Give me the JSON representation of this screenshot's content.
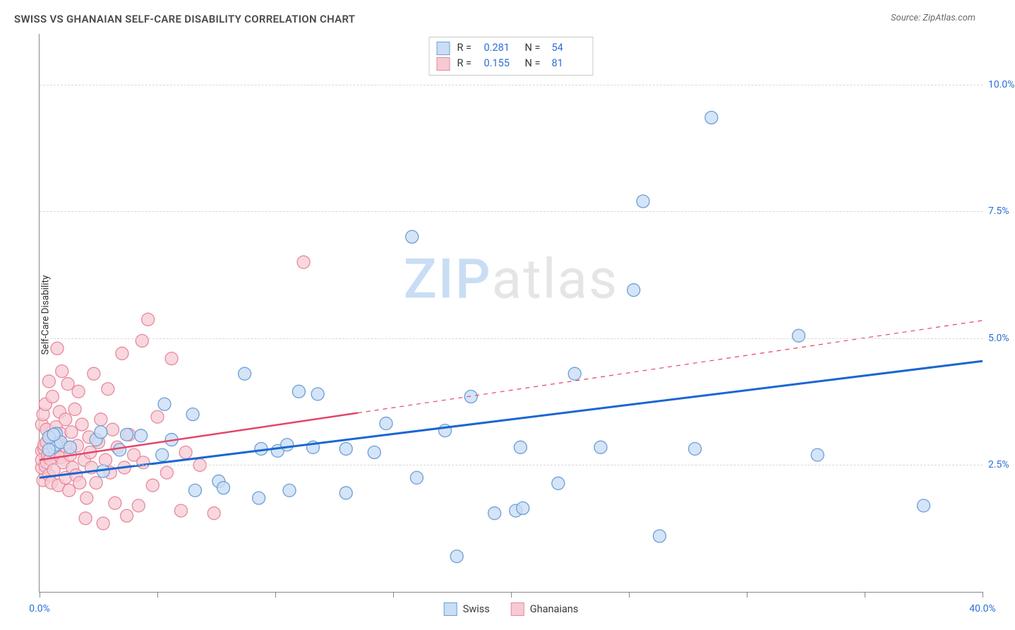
{
  "title": "SWISS VS GHANAIAN SELF-CARE DISABILITY CORRELATION CHART",
  "source_label": "Source: ZipAtlas.com",
  "ylabel": "Self-Care Disability",
  "watermark": {
    "zip": "ZIP",
    "atlas": "atlas"
  },
  "chart": {
    "type": "scatter",
    "xlim": [
      0,
      40
    ],
    "ylim": [
      0,
      11
    ],
    "x_ticks_major": [
      0,
      40
    ],
    "x_tick_labels": [
      "0.0%",
      "40.0%"
    ],
    "x_ticks_minor": [
      5,
      10,
      15,
      20,
      25,
      30,
      35
    ],
    "y_ticks": [
      2.5,
      5.0,
      7.5,
      10.0
    ],
    "y_tick_labels": [
      "2.5%",
      "5.0%",
      "7.5%",
      "10.0%"
    ],
    "grid_color": "#d8d8d8",
    "background_color": "#ffffff",
    "axis_color": "#808080",
    "tick_label_color": "#2a6fd6",
    "series": [
      {
        "name": "Swiss",
        "marker_fill": "#c9ddf4",
        "marker_stroke": "#6a9fd8",
        "marker_radius": 9,
        "marker_opacity": 0.78,
        "trend": {
          "color": "#1b66d1",
          "width": 3,
          "x1": 0,
          "y1": 2.25,
          "x2": 40,
          "y2": 4.55,
          "dash_after_x": null
        },
        "r": "0.281",
        "n": "54",
        "points": [
          [
            0.6,
            2.85
          ],
          [
            0.7,
            2.9
          ],
          [
            0.7,
            3.12
          ],
          [
            0.9,
            2.95
          ],
          [
            0.4,
            2.8
          ],
          [
            0.4,
            3.05
          ],
          [
            0.6,
            3.1
          ],
          [
            1.3,
            2.85
          ],
          [
            2.4,
            3.0
          ],
          [
            2.6,
            3.15
          ],
          [
            2.7,
            2.38
          ],
          [
            3.4,
            2.8
          ],
          [
            3.7,
            3.1
          ],
          [
            4.3,
            3.08
          ],
          [
            5.2,
            2.7
          ],
          [
            5.3,
            3.7
          ],
          [
            5.6,
            3.0
          ],
          [
            6.5,
            3.5
          ],
          [
            6.6,
            2.0
          ],
          [
            7.6,
            2.18
          ],
          [
            7.8,
            2.05
          ],
          [
            8.7,
            4.3
          ],
          [
            9.3,
            1.85
          ],
          [
            9.4,
            2.82
          ],
          [
            10.1,
            2.78
          ],
          [
            10.5,
            2.9
          ],
          [
            10.6,
            2.0
          ],
          [
            11.0,
            3.95
          ],
          [
            11.6,
            2.85
          ],
          [
            11.8,
            3.9
          ],
          [
            13.0,
            2.82
          ],
          [
            13.0,
            1.95
          ],
          [
            14.2,
            2.75
          ],
          [
            14.7,
            3.32
          ],
          [
            15.8,
            7.0
          ],
          [
            16.0,
            2.25
          ],
          [
            17.2,
            3.18
          ],
          [
            17.7,
            0.7
          ],
          [
            18.3,
            3.85
          ],
          [
            19.3,
            1.55
          ],
          [
            20.2,
            1.6
          ],
          [
            20.4,
            2.85
          ],
          [
            20.5,
            1.65
          ],
          [
            22.0,
            2.14
          ],
          [
            22.7,
            4.3
          ],
          [
            23.8,
            2.85
          ],
          [
            25.2,
            5.95
          ],
          [
            25.6,
            7.7
          ],
          [
            26.3,
            1.1
          ],
          [
            27.8,
            2.82
          ],
          [
            28.5,
            9.35
          ],
          [
            32.2,
            5.05
          ],
          [
            33.0,
            2.7
          ],
          [
            37.5,
            1.7
          ]
        ]
      },
      {
        "name": "Ghanaians",
        "marker_fill": "#f7cad3",
        "marker_stroke": "#e58a9e",
        "marker_radius": 9,
        "marker_opacity": 0.75,
        "trend": {
          "color": "#e44569",
          "width": 2.5,
          "x1": 0,
          "y1": 2.6,
          "x2": 40,
          "y2": 5.35,
          "dash_after_x": 13.5
        },
        "r": "0.155",
        "n": "81",
        "points": [
          [
            0.1,
            2.45
          ],
          [
            0.1,
            2.78
          ],
          [
            0.1,
            2.6
          ],
          [
            0.1,
            3.3
          ],
          [
            0.15,
            3.5
          ],
          [
            0.15,
            2.2
          ],
          [
            0.2,
            2.82
          ],
          [
            0.2,
            2.9
          ],
          [
            0.25,
            2.48
          ],
          [
            0.25,
            3.7
          ],
          [
            0.3,
            2.55
          ],
          [
            0.3,
            2.95
          ],
          [
            0.3,
            3.2
          ],
          [
            0.35,
            2.7
          ],
          [
            0.4,
            4.15
          ],
          [
            0.4,
            2.3
          ],
          [
            0.45,
            2.62
          ],
          [
            0.5,
            3.08
          ],
          [
            0.5,
            2.15
          ],
          [
            0.55,
            3.85
          ],
          [
            0.6,
            2.88
          ],
          [
            0.6,
            2.4
          ],
          [
            0.65,
            2.75
          ],
          [
            0.7,
            3.25
          ],
          [
            0.75,
            4.8
          ],
          [
            0.8,
            2.1
          ],
          [
            0.8,
            2.92
          ],
          [
            0.85,
            3.55
          ],
          [
            0.9,
            2.65
          ],
          [
            0.9,
            3.12
          ],
          [
            0.95,
            4.35
          ],
          [
            1.0,
            2.55
          ],
          [
            1.1,
            2.25
          ],
          [
            1.1,
            3.4
          ],
          [
            1.15,
            2.85
          ],
          [
            1.2,
            4.1
          ],
          [
            1.25,
            2.0
          ],
          [
            1.3,
            2.7
          ],
          [
            1.35,
            3.15
          ],
          [
            1.4,
            2.45
          ],
          [
            1.5,
            3.6
          ],
          [
            1.55,
            2.3
          ],
          [
            1.6,
            2.88
          ],
          [
            1.65,
            3.95
          ],
          [
            1.7,
            2.15
          ],
          [
            1.8,
            3.3
          ],
          [
            1.9,
            2.6
          ],
          [
            1.95,
            1.45
          ],
          [
            2.0,
            1.85
          ],
          [
            2.1,
            3.05
          ],
          [
            2.15,
            2.75
          ],
          [
            2.2,
            2.45
          ],
          [
            2.3,
            4.3
          ],
          [
            2.4,
            2.15
          ],
          [
            2.5,
            2.95
          ],
          [
            2.6,
            3.4
          ],
          [
            2.7,
            1.35
          ],
          [
            2.8,
            2.6
          ],
          [
            2.9,
            4.0
          ],
          [
            3.0,
            2.35
          ],
          [
            3.1,
            3.2
          ],
          [
            3.2,
            1.75
          ],
          [
            3.3,
            2.85
          ],
          [
            3.5,
            4.7
          ],
          [
            3.6,
            2.45
          ],
          [
            3.7,
            1.5
          ],
          [
            3.8,
            3.1
          ],
          [
            4.0,
            2.7
          ],
          [
            4.2,
            1.7
          ],
          [
            4.35,
            4.95
          ],
          [
            4.4,
            2.55
          ],
          [
            4.6,
            5.37
          ],
          [
            4.8,
            2.1
          ],
          [
            5.0,
            3.45
          ],
          [
            5.4,
            2.35
          ],
          [
            5.6,
            4.6
          ],
          [
            6.0,
            1.6
          ],
          [
            6.2,
            2.75
          ],
          [
            6.8,
            2.5
          ],
          [
            7.4,
            1.55
          ],
          [
            11.2,
            6.5
          ]
        ]
      }
    ],
    "legend_top": {
      "r_label": "R =",
      "n_label": "N ="
    },
    "legend_bottom": {
      "items": [
        "Swiss",
        "Ghanaians"
      ]
    }
  }
}
